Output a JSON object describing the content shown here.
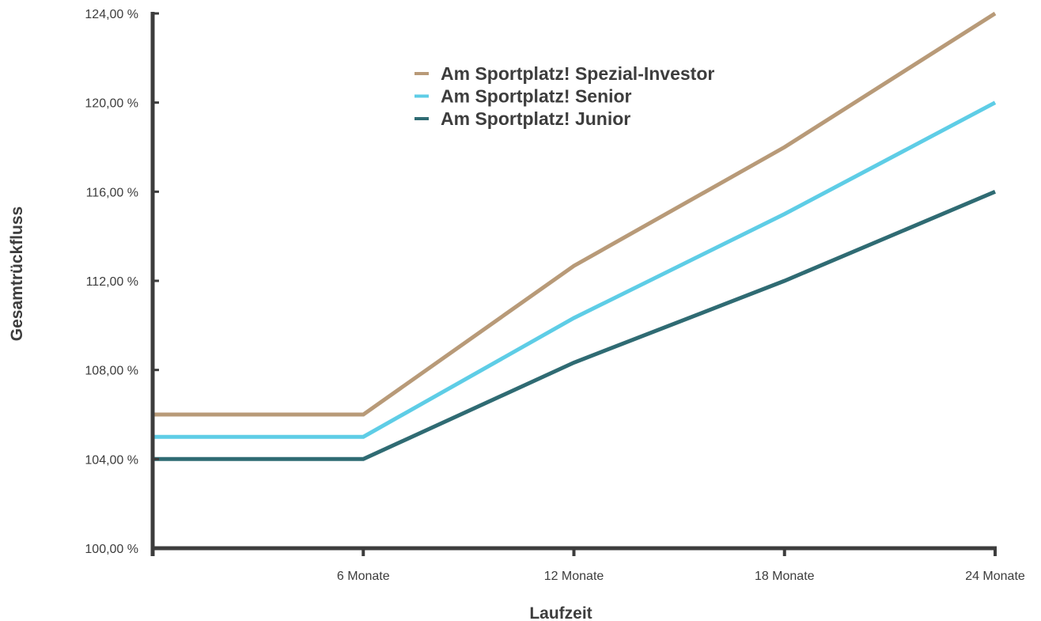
{
  "chart_data": {
    "type": "line",
    "x": [
      0,
      6,
      12,
      18,
      24
    ],
    "x_tick_values": [
      6,
      12,
      18,
      24
    ],
    "x_tick_labels": [
      "6 Monate",
      "12 Monate",
      "18 Monate",
      "24 Monate"
    ],
    "y_tick_values": [
      100,
      104,
      108,
      112,
      116,
      120,
      124
    ],
    "y_tick_labels": [
      "100,00 %",
      "104,00 %",
      "108,00 %",
      "112,00 %",
      "116,00 %",
      "120,00 %",
      "124,00 %"
    ],
    "xlabel": "Laufzeit",
    "ylabel": "Gesamtrückfluss",
    "xlim": [
      0,
      24
    ],
    "ylim": [
      100,
      124
    ],
    "grid": false,
    "legend_position": "top-center",
    "series": [
      {
        "name": "Am Sportplatz! Spezial-Investor",
        "color": "#b89a78",
        "values": [
          106,
          106,
          112.67,
          118,
          124
        ]
      },
      {
        "name": "Am Sportplatz! Senior",
        "color": "#5ecde6",
        "values": [
          105,
          105,
          110.33,
          115,
          120
        ]
      },
      {
        "name": "Am Sportplatz! Junior",
        "color": "#2f6b73",
        "values": [
          104,
          104,
          108.33,
          112,
          116
        ]
      }
    ]
  },
  "colors": {
    "axis": "#3d3d3d",
    "text": "#3d3d3d"
  }
}
